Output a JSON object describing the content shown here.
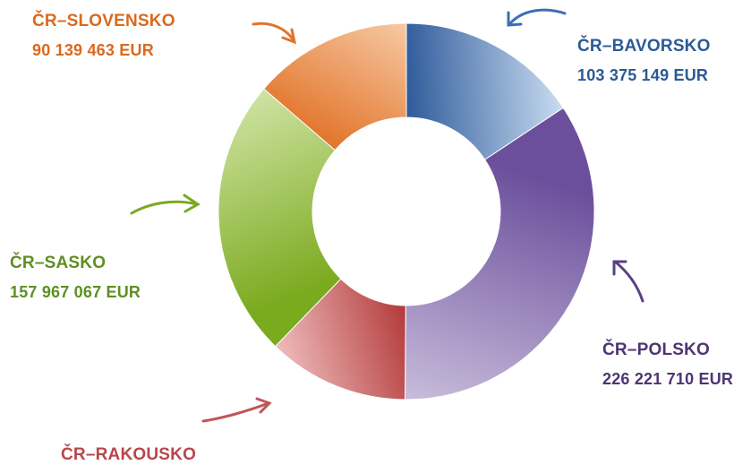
{
  "chart_data": {
    "type": "pie",
    "donut": true,
    "unit": "EUR",
    "slices": [
      {
        "label": "ČR–BAVORSKO",
        "value": 103375149,
        "value_text": "103 375 149  EUR",
        "color": "#2e5a9a",
        "color_light": "#c9dcf1"
      },
      {
        "label": "ČR–POLSKO",
        "value": 226221710,
        "value_text": "226 221 710  EUR",
        "color": "#6b4f9c",
        "color_light": "#c8bcdb"
      },
      {
        "label": "ČR–RAKOUSKO",
        "value": 80000000,
        "value_text": "",
        "color": "#b33a3a",
        "color_light": "#efbcbc"
      },
      {
        "label": "ČR–SASKO",
        "value": 157967067,
        "value_text": "157 967 067  EUR",
        "color": "#7aaa1e",
        "color_light": "#cfe3a3"
      },
      {
        "label": "ČR–SLOVENSKO",
        "value": 90139463,
        "value_text": "90 139 463  EUR",
        "color": "#e2742a",
        "color_light": "#f7c9a4"
      }
    ]
  },
  "labels": {
    "bavorsko": {
      "name": "ČR–BAVORSKO",
      "value": "103 375 149  EUR",
      "color": "#2b5a95"
    },
    "polsko": {
      "name": "ČR–POLSKO",
      "value": "226 221 710  EUR",
      "color": "#4e3474"
    },
    "rakousko": {
      "name": "ČR–RAKOUSKO",
      "color": "#b8474a"
    },
    "sasko": {
      "name": "ČR–SASKO",
      "value": "157 967 067  EUR",
      "color": "#5e8f23"
    },
    "slovensko": {
      "name": "ČR–SLOVENSKO",
      "value": "90 139 463  EUR",
      "color": "#d9691f"
    }
  }
}
